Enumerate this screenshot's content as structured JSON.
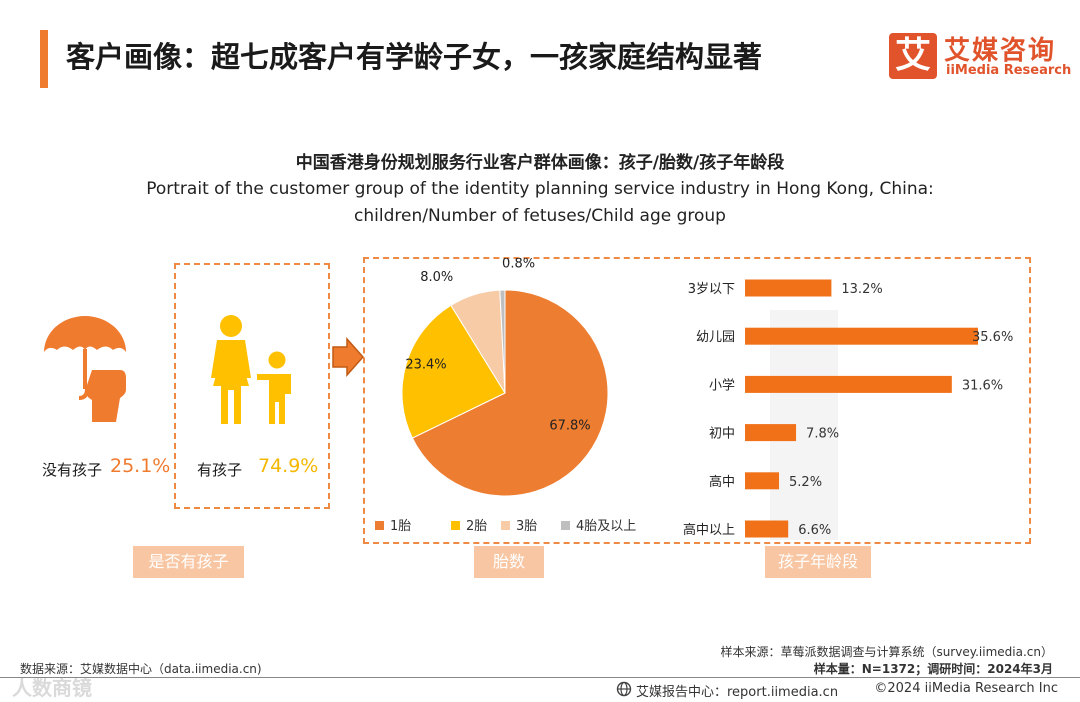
{
  "header": {
    "title": "客户画像：超七成客户有学龄子女，一孩家庭结构显著",
    "logo_mark": "艾",
    "logo_cn": "艾媒咨询",
    "logo_en": "iiMedia Research"
  },
  "chart_title": {
    "cn": "中国香港身份规划服务行业客户群体画像：孩子/胎数/孩子年龄段",
    "en": "Portrait of the customer group of the identity planning service industry in Hong Kong, China: children/Number of fetuses/Child age group"
  },
  "children_section": {
    "no_child_label": "没有孩子",
    "no_child_value": "25.1%",
    "has_child_label": "有孩子",
    "has_child_value": "74.9%",
    "section_label": "是否有孩子"
  },
  "colors": {
    "accent": "#ef7b2f",
    "pie_1": "#ed7d31",
    "pie_2": "#ffc000",
    "pie_3": "#f8cba7",
    "pie_4": "#bfbfbf",
    "bar": "#f07118",
    "label_bg": "#f8c6a2"
  },
  "chart_data": [
    {
      "type": "pie",
      "title": "胎数",
      "categories": [
        "1胎",
        "2胎",
        "3胎",
        "4胎及以上"
      ],
      "values": [
        67.8,
        23.4,
        8.0,
        0.8
      ],
      "labels": [
        "67.8%",
        "23.4%",
        "8.0%",
        "0.8%"
      ],
      "legend": "bottom"
    },
    {
      "type": "bar",
      "orientation": "horizontal",
      "title": "孩子年龄段",
      "categories": [
        "3岁以下",
        "幼儿园",
        "小学",
        "初中",
        "高中",
        "高中以上"
      ],
      "values": [
        13.2,
        35.6,
        31.6,
        7.8,
        5.2,
        6.6
      ],
      "labels": [
        "13.2%",
        "35.6%",
        "31.6%",
        "7.8%",
        "5.2%",
        "6.6%"
      ],
      "xlim": [
        0,
        35.6
      ]
    }
  ],
  "section_labels": {
    "fetus": "胎数",
    "age": "孩子年龄段"
  },
  "footer": {
    "sample_source": "样本来源：草莓派数据调查与计算系统（survey.iimedia.cn）",
    "sample_size": "样本量：N=1372；调研时间：2024年3月",
    "data_source": "数据来源：艾媒数据中心（data.iimedia.cn)",
    "report_center": "艾媒报告中心：report.iimedia.cn",
    "copyright": "©2024  iiMedia Research  Inc",
    "watermark": "人数商镜"
  }
}
